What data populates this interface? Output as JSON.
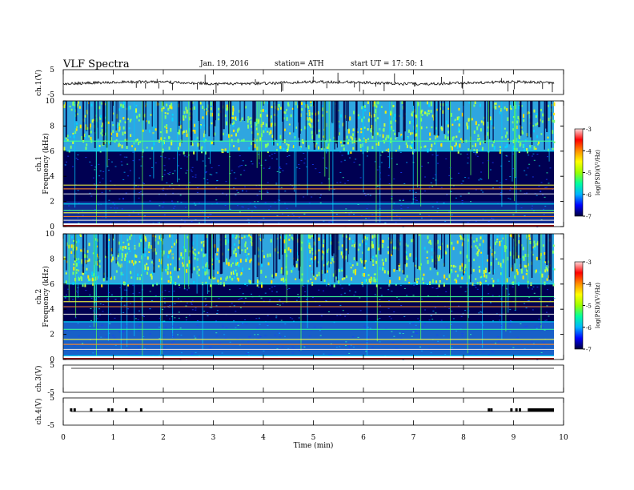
{
  "header": {
    "title": "VLF  Spectra",
    "date": "Jan. 19, 2016",
    "station": "station= ATH",
    "start": "start  UT  =   17: 50: 1"
  },
  "chart_data": [
    {
      "type": "line",
      "panel": "ch1-waveform",
      "ylabel": "ch.1(V)",
      "ylim": [
        -5,
        5
      ],
      "yticks": [
        "5",
        "-5"
      ],
      "baseline": 0,
      "description_of_series": "noisy trace near 0 V with sporadic spikes"
    },
    {
      "type": "heatmap",
      "panel": "ch1-spectrogram",
      "ylabel": "ch.1\nFrequency  (kHz)",
      "ylim": [
        0,
        10
      ],
      "yticks": [
        "0",
        "2",
        "4",
        "6",
        "8",
        "10"
      ],
      "xlim": [
        0,
        10
      ],
      "colorbar": {
        "label": "log(PSD)(V²/Hz)",
        "range": [
          -7,
          -3
        ],
        "ticks": [
          "-3",
          "-4",
          "-5",
          "-6",
          "-7"
        ]
      },
      "bands_khz": [
        {
          "from": 6.0,
          "to": 10.0,
          "level": "high"
        },
        {
          "from": 2.0,
          "to": 6.0,
          "level": "low"
        },
        {
          "from": 0.0,
          "to": 2.0,
          "level": "mixed"
        }
      ],
      "lines_khz": [
        6.0,
        6.8,
        3.3,
        3.0,
        2.6,
        1.8,
        1.3,
        1.1,
        0.8,
        0.5
      ]
    },
    {
      "type": "heatmap",
      "panel": "ch2-spectrogram",
      "ylabel": "ch.2\nFrequency  (kHz)",
      "ylim": [
        0,
        10
      ],
      "yticks": [
        "0",
        "2",
        "4",
        "6",
        "8",
        "10"
      ],
      "xlim": [
        0,
        10
      ],
      "colorbar": {
        "label": "log(PSD)(V²/Hz)",
        "range": [
          -7,
          -3
        ],
        "ticks": [
          "-3",
          "-4",
          "-5",
          "-6",
          "-7"
        ]
      },
      "bands_khz": [
        {
          "from": 6.0,
          "to": 10.0,
          "level": "high"
        },
        {
          "from": 3.0,
          "to": 6.0,
          "level": "low"
        },
        {
          "from": 0.0,
          "to": 3.0,
          "level": "mid"
        }
      ],
      "lines_khz": [
        6.0,
        5.0,
        4.6,
        4.2,
        3.6,
        3.0,
        2.4,
        1.6,
        1.2,
        0.8,
        0.3
      ]
    },
    {
      "type": "line",
      "panel": "ch3-waveform",
      "ylabel": "ch.3(V)",
      "ylim": [
        -5,
        5
      ],
      "yticks": [
        "5",
        "-5"
      ],
      "baseline": 0
    },
    {
      "type": "line",
      "panel": "ch4-waveform",
      "ylabel": "ch.4(V)",
      "ylim": [
        -5,
        5
      ],
      "yticks": [
        "5",
        "-5"
      ],
      "baseline": 0,
      "pulses_min": [
        0.15,
        0.22,
        0.55,
        0.9,
        0.97,
        1.25,
        1.55,
        8.5,
        8.55,
        8.95,
        9.05,
        9.12,
        9.3,
        9.55
      ]
    }
  ],
  "xaxis": {
    "label": "Time  (min)",
    "ticks": [
      "0",
      "1",
      "2",
      "3",
      "4",
      "5",
      "6",
      "7",
      "8",
      "9",
      "10"
    ],
    "range": [
      0,
      10
    ]
  },
  "colors": {
    "cb_stops": [
      "#00003a",
      "#0000ff",
      "#00b4ff",
      "#00ffa0",
      "#9bff00",
      "#ffff00",
      "#ff8c00",
      "#ff0000",
      "#ffdada"
    ]
  }
}
